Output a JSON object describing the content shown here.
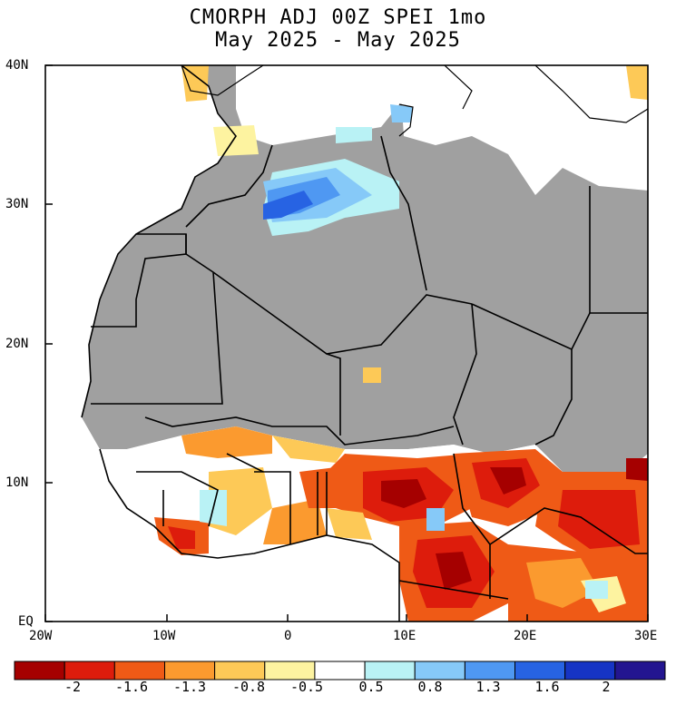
{
  "title": {
    "line1": "CMORPH ADJ 00Z SPEI 1mo",
    "line2": "May 2025 - May 2025"
  },
  "axes": {
    "lat_labels": [
      "40N",
      "30N",
      "20N",
      "10N",
      "EQ"
    ],
    "lon_labels": [
      "20W",
      "10W",
      "0",
      "10E",
      "20E",
      "30E"
    ],
    "lat_range": [
      0,
      40
    ],
    "lon_range": [
      -20,
      30
    ]
  },
  "colorbar": {
    "labels": [
      "-2",
      "-1.6",
      "-1.3",
      "-0.8",
      "-0.5",
      "0.5",
      "0.8",
      "1.3",
      "1.6",
      "2"
    ],
    "colors": [
      "#a50000",
      "#dd1c0c",
      "#ef5a16",
      "#fb9a2f",
      "#fdc957",
      "#fdf3a0",
      "#ffffff",
      "#b9f2f5",
      "#86c9f8",
      "#4f98f2",
      "#2763e3",
      "#1634c4",
      "#231590"
    ]
  },
  "map_colors": {
    "land_gray": "#a0a0a0",
    "ocean": "#ffffff"
  }
}
